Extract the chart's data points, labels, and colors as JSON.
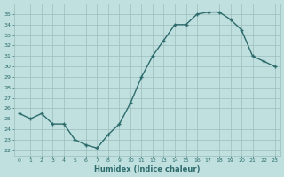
{
  "x": [
    0,
    1,
    2,
    3,
    4,
    5,
    6,
    7,
    8,
    9,
    10,
    11,
    12,
    13,
    14,
    15,
    16,
    17,
    18,
    19,
    20,
    21,
    22,
    23
  ],
  "y": [
    25.5,
    25.0,
    25.5,
    24.5,
    24.5,
    23.0,
    22.5,
    22.2,
    23.5,
    24.5,
    26.5,
    29.0,
    31.0,
    32.5,
    34.0,
    34.0,
    35.0,
    35.2,
    35.2,
    34.5,
    33.5,
    31.0,
    30.5,
    30.0
  ],
  "line_color": "#2d6b6b",
  "marker": "+",
  "background_color": "#c0e0e0",
  "grid_color": "#9dbdbd",
  "xlabel": "Humidex (Indice chaleur)",
  "ylabel": "",
  "title": "",
  "ylim": [
    21.5,
    36.0
  ],
  "xlim": [
    -0.5,
    23.5
  ],
  "yticks": [
    22,
    23,
    24,
    25,
    26,
    27,
    28,
    29,
    30,
    31,
    32,
    33,
    34,
    35
  ],
  "xticks": [
    0,
    1,
    2,
    3,
    4,
    5,
    6,
    7,
    8,
    9,
    10,
    11,
    12,
    13,
    14,
    15,
    16,
    17,
    18,
    19,
    20,
    21,
    22,
    23
  ],
  "xtick_labels": [
    "0",
    "1",
    "2",
    "3",
    "4",
    "5",
    "6",
    "7",
    "8",
    "9",
    "10",
    "11",
    "12",
    "13",
    "14",
    "15",
    "16",
    "17",
    "18",
    "19",
    "20",
    "21",
    "22",
    "23"
  ],
  "font_color": "#2d6b6b",
  "linewidth": 1.0,
  "markersize": 3.5
}
